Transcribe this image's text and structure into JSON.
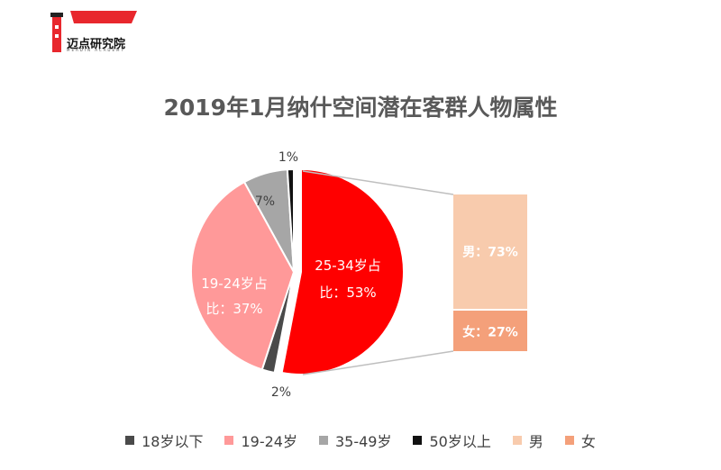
{
  "brand": {
    "name": "迈点研究院",
    "sub": "MEADIN ACADEMY",
    "colors": {
      "logo_red": "#e8272d",
      "logo_dark": "#222222"
    }
  },
  "chart_data": {
    "type": "pie",
    "title": "2019年1月纳什空间潜在客群人物属性",
    "pie": {
      "slices": [
        {
          "label": "18岁以下",
          "value": 2,
          "color": "#4a4a4a",
          "data_label": "2%"
        },
        {
          "label": "19-24岁",
          "value": 37,
          "color": "#ff9999",
          "data_label": "19-24岁占比：37%"
        },
        {
          "label": "35-49岁",
          "value": 7,
          "color": "#a6a6a6",
          "data_label": "7%"
        },
        {
          "label": "50岁以上",
          "value": 1,
          "color": "#111111",
          "data_label": "1%"
        },
        {
          "label": "25-34岁",
          "value": 53,
          "color": "#ff0000",
          "data_label": "25-34岁占比：53%"
        }
      ]
    },
    "breakout": {
      "of": "25-34岁",
      "segments": [
        {
          "label": "男",
          "value": 73,
          "color": "#f8cbad",
          "data_label": "男：73%"
        },
        {
          "label": "女",
          "value": 27,
          "color": "#f4a07a",
          "data_label": "女：27%"
        }
      ]
    },
    "legend": [
      "18岁以下",
      "19-24岁",
      "35-49岁",
      "50岁以上",
      "男",
      "女"
    ],
    "legend_colors": [
      "#4a4a4a",
      "#ff9999",
      "#a6a6a6",
      "#111111",
      "#f8cbad",
      "#f4a07a"
    ],
    "legend_position": "bottom"
  }
}
